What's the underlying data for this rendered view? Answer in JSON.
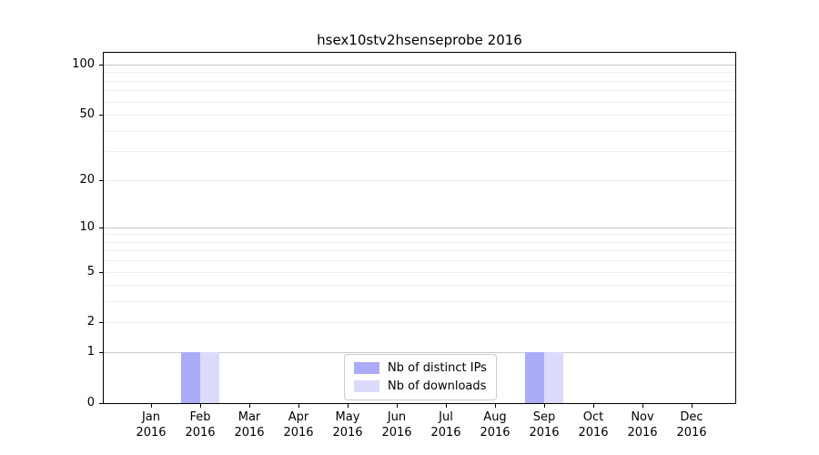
{
  "chart_data": {
    "type": "bar",
    "title": "hsex10stv2hsenseprobe 2016",
    "categories": [
      "Jan",
      "Feb",
      "Mar",
      "Apr",
      "May",
      "Jun",
      "Jul",
      "Aug",
      "Sep",
      "Oct",
      "Nov",
      "Dec"
    ],
    "year": "2016",
    "series": [
      {
        "name": "Nb of distinct IPs",
        "color": "#ababf7",
        "values": [
          0,
          1,
          0,
          0,
          0,
          0,
          0,
          0,
          1,
          0,
          0,
          0
        ]
      },
      {
        "name": "Nb of downloads",
        "color": "#dbdbf9",
        "values": [
          0,
          1,
          0,
          0,
          0,
          0,
          0,
          0,
          1,
          0,
          0,
          0
        ]
      }
    ],
    "yscale": "log1p",
    "ylim": [
      0,
      119
    ],
    "yticks": [
      {
        "label": "0",
        "value": 0
      },
      {
        "label": "1",
        "value": 1
      },
      {
        "label": "2",
        "value": 2
      },
      {
        "label": "5",
        "value": 5
      },
      {
        "label": "10",
        "value": 10
      },
      {
        "label": "20",
        "value": 20
      },
      {
        "label": "50",
        "value": 50
      },
      {
        "label": "100",
        "value": 100
      }
    ],
    "major_gridlines": [
      1,
      10,
      100
    ],
    "minor_gridlines": [
      2,
      3,
      4,
      5,
      6,
      7,
      8,
      9,
      20,
      30,
      40,
      50,
      60,
      70,
      80,
      90
    ],
    "grid": true,
    "legend_position": "lower center",
    "colors": {
      "major_grid": "#c8c8c8",
      "minor_grid": "#ececec",
      "axis": "#000000",
      "background": "#ffffff",
      "text": "#000000"
    }
  }
}
